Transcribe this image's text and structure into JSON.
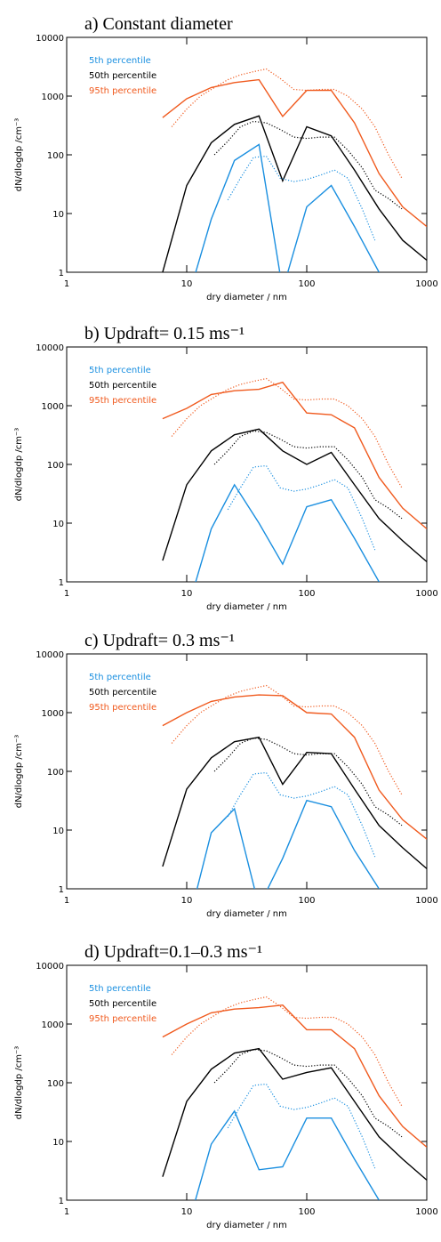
{
  "chart_data": [
    {
      "type": "line",
      "title": "a) Constant diameter",
      "x_label": "dry diameter / nm",
      "y_label": "dN/dlogdp /cm⁻³",
      "xlog": true,
      "ylog": true,
      "xlim": [
        1,
        1000
      ],
      "ylim": [
        1,
        10000
      ],
      "xticks": [
        1,
        10,
        100,
        1000
      ],
      "yticks": [
        1,
        10,
        100,
        1000,
        10000
      ],
      "legend": "upper left",
      "series": [
        {
          "name": "5th percentile",
          "color": "#1a8fe0",
          "style": "solid",
          "x": [
            6.3,
            10,
            16,
            25,
            40,
            63,
            100,
            160,
            250,
            400,
            630,
            1000
          ],
          "values": [
            null,
            0.3,
            8,
            80,
            150,
            0.5,
            13,
            30,
            6,
            1.0,
            null,
            null
          ]
        },
        {
          "name": "50th percentile",
          "color": "#000000",
          "style": "solid",
          "x": [
            6.3,
            10,
            16,
            25,
            40,
            63,
            100,
            160,
            250,
            400,
            630,
            1000
          ],
          "values": [
            1,
            30,
            160,
            330,
            460,
            36,
            300,
            210,
            55,
            12,
            3.5,
            1.6
          ]
        },
        {
          "name": "95th percentile",
          "color": "#f05a1e",
          "style": "solid",
          "x": [
            6.3,
            10,
            16,
            25,
            40,
            63,
            100,
            160,
            250,
            400,
            630,
            1000
          ],
          "values": [
            430,
            900,
            1400,
            1700,
            1900,
            450,
            1250,
            1250,
            350,
            48,
            13,
            6
          ]
        },
        {
          "color": "#1a8fe0",
          "style": "dotted",
          "x": [
            7.5,
            10,
            13,
            17,
            22,
            28,
            36,
            46,
            60,
            78,
            100,
            130,
            170,
            220,
            290,
            370,
            480,
            620
          ],
          "values": [
            null,
            null,
            null,
            null,
            17,
            40,
            90,
            95,
            40,
            35,
            38,
            45,
            55,
            40,
            12,
            3.5,
            null,
            null
          ]
        },
        {
          "color": "#000000",
          "style": "dotted",
          "x": [
            7.5,
            10,
            13,
            17,
            22,
            28,
            36,
            46,
            60,
            78,
            100,
            130,
            170,
            220,
            290,
            370,
            480,
            620
          ],
          "values": [
            null,
            null,
            null,
            100,
            170,
            300,
            370,
            350,
            270,
            200,
            190,
            200,
            200,
            120,
            60,
            25,
            18,
            12
          ]
        },
        {
          "color": "#f05a1e",
          "style": "dotted",
          "x": [
            7.5,
            10,
            13,
            17,
            22,
            28,
            36,
            46,
            60,
            78,
            100,
            130,
            170,
            220,
            290,
            370,
            480,
            620
          ],
          "values": [
            300,
            600,
            1000,
            1400,
            1900,
            2300,
            2600,
            2900,
            2000,
            1300,
            1250,
            1300,
            1300,
            1000,
            600,
            300,
            100,
            40
          ]
        }
      ]
    },
    {
      "type": "line",
      "title": "b) Updraft= 0.15 ms⁻¹",
      "x_label": "dry diameter / nm",
      "y_label": "dN/dlogdp /cm⁻³",
      "xlog": true,
      "ylog": true,
      "xlim": [
        1,
        1000
      ],
      "ylim": [
        1,
        10000
      ],
      "xticks": [
        1,
        10,
        100,
        1000
      ],
      "yticks": [
        1,
        10,
        100,
        1000,
        10000
      ],
      "legend": "upper left",
      "series": [
        {
          "name": "5th percentile",
          "color": "#1a8fe0",
          "style": "solid",
          "x": [
            6.3,
            10,
            16,
            25,
            40,
            63,
            100,
            160,
            250,
            400,
            630,
            1000
          ],
          "values": [
            null,
            0.3,
            8,
            45,
            10,
            2,
            19,
            25,
            5.5,
            1.0,
            null,
            null
          ]
        },
        {
          "name": "50th percentile",
          "color": "#000000",
          "style": "solid",
          "x": [
            6.3,
            10,
            16,
            25,
            40,
            63,
            100,
            160,
            250,
            400,
            630,
            1000
          ],
          "values": [
            2.3,
            45,
            170,
            320,
            400,
            170,
            100,
            160,
            45,
            12,
            5,
            2.2
          ]
        },
        {
          "name": "95th percentile",
          "color": "#f05a1e",
          "style": "solid",
          "x": [
            6.3,
            10,
            16,
            25,
            40,
            63,
            100,
            160,
            250,
            400,
            630,
            1000
          ],
          "values": [
            600,
            900,
            1550,
            1800,
            1900,
            2500,
            750,
            700,
            420,
            60,
            18,
            8
          ]
        },
        {
          "color": "#1a8fe0",
          "style": "dotted",
          "x": [
            7.5,
            10,
            13,
            17,
            22,
            28,
            36,
            46,
            60,
            78,
            100,
            130,
            170,
            220,
            290,
            370,
            480,
            620
          ],
          "values": [
            null,
            null,
            null,
            null,
            17,
            40,
            90,
            95,
            40,
            35,
            38,
            45,
            55,
            40,
            12,
            3.5,
            null,
            null
          ]
        },
        {
          "color": "#000000",
          "style": "dotted",
          "x": [
            7.5,
            10,
            13,
            17,
            22,
            28,
            36,
            46,
            60,
            78,
            100,
            130,
            170,
            220,
            290,
            370,
            480,
            620
          ],
          "values": [
            null,
            null,
            null,
            100,
            170,
            300,
            370,
            350,
            270,
            200,
            190,
            200,
            200,
            120,
            60,
            25,
            18,
            12
          ]
        },
        {
          "color": "#f05a1e",
          "style": "dotted",
          "x": [
            7.5,
            10,
            13,
            17,
            22,
            28,
            36,
            46,
            60,
            78,
            100,
            130,
            170,
            220,
            290,
            370,
            480,
            620
          ],
          "values": [
            300,
            600,
            1000,
            1400,
            1900,
            2300,
            2600,
            2900,
            2000,
            1300,
            1250,
            1300,
            1300,
            1000,
            600,
            300,
            100,
            40
          ]
        }
      ]
    },
    {
      "type": "line",
      "title": "c) Updraft= 0.3 ms⁻¹",
      "x_label": "dry diameter / nm",
      "y_label": "dN/dlogdp /cm⁻³",
      "xlog": true,
      "ylog": true,
      "xlim": [
        1,
        1000
      ],
      "ylim": [
        1,
        10000
      ],
      "xticks": [
        1,
        10,
        100,
        1000
      ],
      "yticks": [
        1,
        10,
        100,
        1000,
        10000
      ],
      "legend": "upper left",
      "series": [
        {
          "name": "5th percentile",
          "color": "#1a8fe0",
          "style": "solid",
          "x": [
            6.3,
            10,
            16,
            25,
            40,
            63,
            100,
            160,
            250,
            400,
            630,
            1000
          ],
          "values": [
            null,
            0.2,
            9,
            23,
            0.5,
            3.3,
            32,
            25,
            4.5,
            1.0,
            null,
            null
          ]
        },
        {
          "name": "50th percentile",
          "color": "#000000",
          "style": "solid",
          "x": [
            6.3,
            10,
            16,
            25,
            40,
            63,
            100,
            160,
            250,
            400,
            630,
            1000
          ],
          "values": [
            2.4,
            50,
            170,
            320,
            380,
            60,
            210,
            200,
            50,
            12,
            5,
            2.2
          ]
        },
        {
          "name": "95th percentile",
          "color": "#f05a1e",
          "style": "solid",
          "x": [
            6.3,
            10,
            16,
            25,
            40,
            63,
            100,
            160,
            250,
            400,
            630,
            1000
          ],
          "values": [
            600,
            1000,
            1550,
            1850,
            2000,
            1950,
            1000,
            950,
            380,
            48,
            15,
            7
          ]
        },
        {
          "color": "#1a8fe0",
          "style": "dotted",
          "x": [
            7.5,
            10,
            13,
            17,
            22,
            28,
            36,
            46,
            60,
            78,
            100,
            130,
            170,
            220,
            290,
            370,
            480,
            620
          ],
          "values": [
            null,
            null,
            null,
            null,
            17,
            40,
            90,
            95,
            40,
            35,
            38,
            45,
            55,
            40,
            12,
            3.5,
            null,
            null
          ]
        },
        {
          "color": "#000000",
          "style": "dotted",
          "x": [
            7.5,
            10,
            13,
            17,
            22,
            28,
            36,
            46,
            60,
            78,
            100,
            130,
            170,
            220,
            290,
            370,
            480,
            620
          ],
          "values": [
            null,
            null,
            null,
            100,
            170,
            300,
            370,
            350,
            270,
            200,
            190,
            200,
            200,
            120,
            60,
            25,
            18,
            12
          ]
        },
        {
          "color": "#f05a1e",
          "style": "dotted",
          "x": [
            7.5,
            10,
            13,
            17,
            22,
            28,
            36,
            46,
            60,
            78,
            100,
            130,
            170,
            220,
            290,
            370,
            480,
            620
          ],
          "values": [
            300,
            600,
            1000,
            1400,
            1900,
            2300,
            2600,
            2900,
            2000,
            1300,
            1250,
            1300,
            1300,
            1000,
            600,
            300,
            100,
            40
          ]
        }
      ]
    },
    {
      "type": "line",
      "title": "d) Updraft=0.1–0.3 ms⁻¹",
      "x_label": "dry diameter / nm",
      "y_label": "dN/dlogdp /cm⁻³",
      "xlog": true,
      "ylog": true,
      "xlim": [
        1,
        1000
      ],
      "ylim": [
        1,
        10000
      ],
      "xticks": [
        1,
        10,
        100,
        1000
      ],
      "yticks": [
        1,
        10,
        100,
        1000,
        10000
      ],
      "legend": "upper left",
      "series": [
        {
          "name": "5th percentile",
          "color": "#1a8fe0",
          "style": "solid",
          "x": [
            6.3,
            10,
            16,
            25,
            40,
            63,
            100,
            160,
            250,
            400,
            630,
            1000
          ],
          "values": [
            null,
            0.3,
            9,
            33,
            3.3,
            3.7,
            25,
            25,
            5,
            1.0,
            null,
            null
          ]
        },
        {
          "name": "50th percentile",
          "color": "#000000",
          "style": "solid",
          "x": [
            6.3,
            10,
            16,
            25,
            40,
            63,
            100,
            160,
            250,
            400,
            630,
            1000
          ],
          "values": [
            2.5,
            48,
            170,
            320,
            380,
            115,
            150,
            180,
            48,
            12,
            5,
            2.2
          ]
        },
        {
          "name": "95th percentile",
          "color": "#f05a1e",
          "style": "solid",
          "x": [
            6.3,
            10,
            16,
            25,
            40,
            63,
            100,
            160,
            250,
            400,
            630,
            1000
          ],
          "values": [
            600,
            1000,
            1550,
            1800,
            1900,
            2100,
            800,
            800,
            380,
            60,
            18,
            8
          ]
        },
        {
          "color": "#1a8fe0",
          "style": "dotted",
          "x": [
            7.5,
            10,
            13,
            17,
            22,
            28,
            36,
            46,
            60,
            78,
            100,
            130,
            170,
            220,
            290,
            370,
            480,
            620
          ],
          "values": [
            null,
            null,
            null,
            null,
            17,
            40,
            90,
            95,
            40,
            35,
            38,
            45,
            55,
            40,
            12,
            3.5,
            null,
            null
          ]
        },
        {
          "color": "#000000",
          "style": "dotted",
          "x": [
            7.5,
            10,
            13,
            17,
            22,
            28,
            36,
            46,
            60,
            78,
            100,
            130,
            170,
            220,
            290,
            370,
            480,
            620
          ],
          "values": [
            null,
            null,
            null,
            100,
            170,
            300,
            370,
            350,
            270,
            200,
            190,
            200,
            200,
            120,
            60,
            25,
            18,
            12
          ]
        },
        {
          "color": "#f05a1e",
          "style": "dotted",
          "x": [
            7.5,
            10,
            13,
            17,
            22,
            28,
            36,
            46,
            60,
            78,
            100,
            130,
            170,
            220,
            290,
            370,
            480,
            620
          ],
          "values": [
            300,
            600,
            1000,
            1400,
            1900,
            2300,
            2600,
            2900,
            2000,
            1300,
            1250,
            1300,
            1300,
            1000,
            600,
            300,
            100,
            40
          ]
        }
      ]
    }
  ]
}
